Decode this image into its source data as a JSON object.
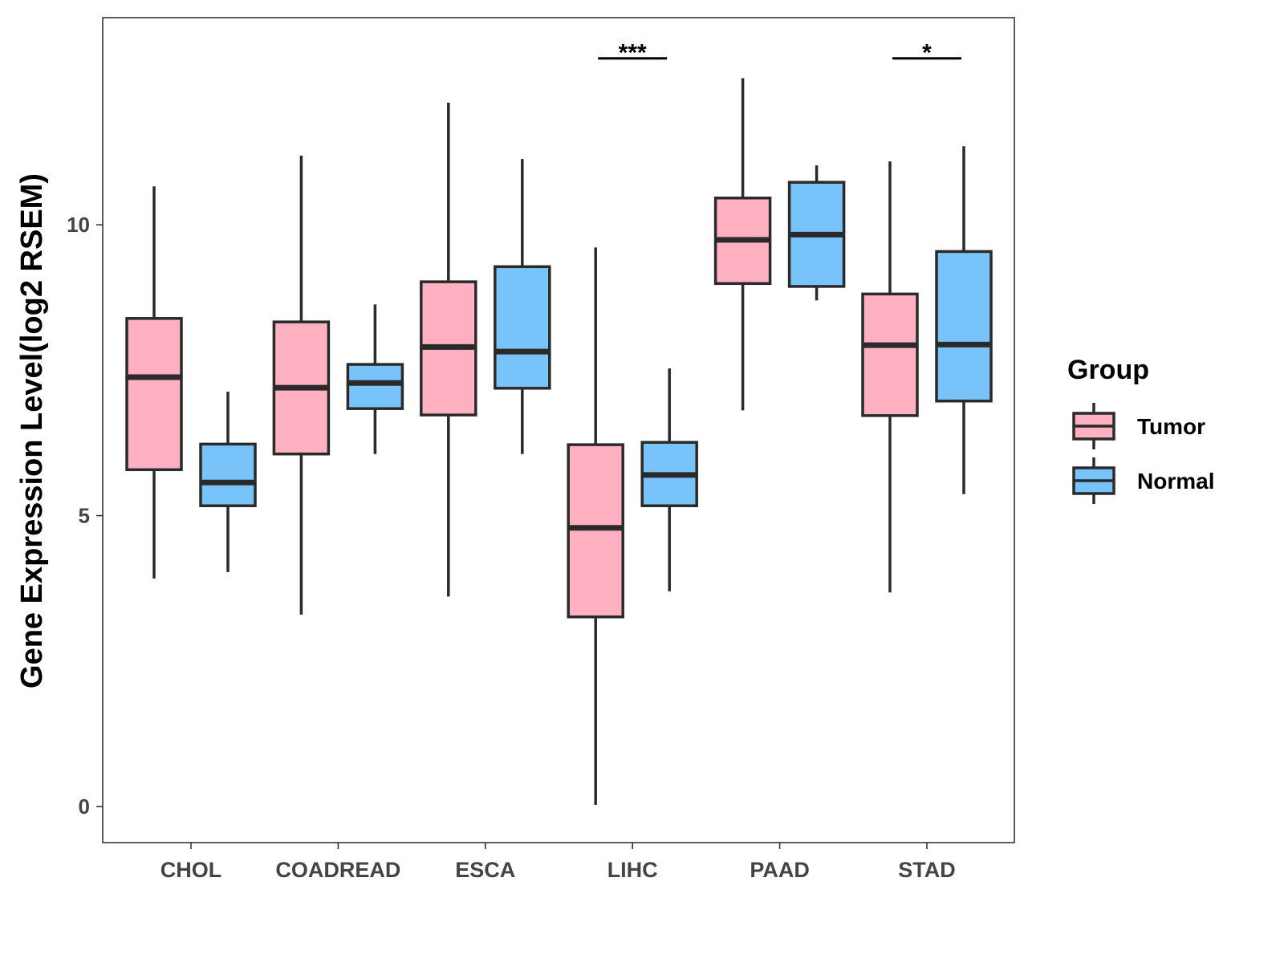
{
  "chart_data": {
    "type": "box",
    "ylabel": "Gene Expression Level(log2 RSEM)",
    "xlabel": "",
    "ylim": [
      -0.62,
      13.56
    ],
    "yticks": [
      0,
      5,
      10
    ],
    "grid": false,
    "categories": [
      "CHOL",
      "COADREAD",
      "ESCA",
      "LIHC",
      "PAAD",
      "STAD"
    ],
    "legend": {
      "title": "Group",
      "position": "right",
      "entries": [
        "Tumor",
        "Normal"
      ]
    },
    "colors": {
      "Tumor": "#FFB0C1",
      "Normal": "#79C3FB",
      "outline": "#2a2a2a"
    },
    "series": [
      {
        "name": "Tumor",
        "boxes": [
          {
            "min": 3.92,
            "q1": 5.79,
            "median": 7.38,
            "q3": 8.39,
            "max": 10.66
          },
          {
            "min": 3.3,
            "q1": 6.06,
            "median": 7.2,
            "q3": 8.33,
            "max": 11.19
          },
          {
            "min": 3.61,
            "q1": 6.73,
            "median": 7.9,
            "q3": 9.02,
            "max": 12.1
          },
          {
            "min": 0.03,
            "q1": 3.26,
            "median": 4.79,
            "q3": 6.22,
            "max": 9.61
          },
          {
            "min": 6.81,
            "q1": 8.99,
            "median": 9.74,
            "q3": 10.46,
            "max": 12.52
          },
          {
            "min": 3.68,
            "q1": 6.72,
            "median": 7.93,
            "q3": 8.81,
            "max": 11.09
          }
        ]
      },
      {
        "name": "Normal",
        "boxes": [
          {
            "min": 4.03,
            "q1": 5.17,
            "median": 5.57,
            "q3": 6.23,
            "max": 7.13
          },
          {
            "min": 6.06,
            "q1": 6.84,
            "median": 7.28,
            "q3": 7.6,
            "max": 8.63
          },
          {
            "min": 6.06,
            "q1": 7.19,
            "median": 7.82,
            "q3": 9.28,
            "max": 11.13
          },
          {
            "min": 3.7,
            "q1": 5.17,
            "median": 5.7,
            "q3": 6.26,
            "max": 7.53
          },
          {
            "min": 8.7,
            "q1": 8.94,
            "median": 9.83,
            "q3": 10.73,
            "max": 11.02
          },
          {
            "min": 5.37,
            "q1": 6.97,
            "median": 7.94,
            "q3": 9.54,
            "max": 11.35
          }
        ]
      }
    ],
    "annotations": [
      {
        "category": "LIHC",
        "label": "***",
        "y": 12.86
      },
      {
        "category": "STAD",
        "label": "*",
        "y": 12.86
      }
    ]
  }
}
